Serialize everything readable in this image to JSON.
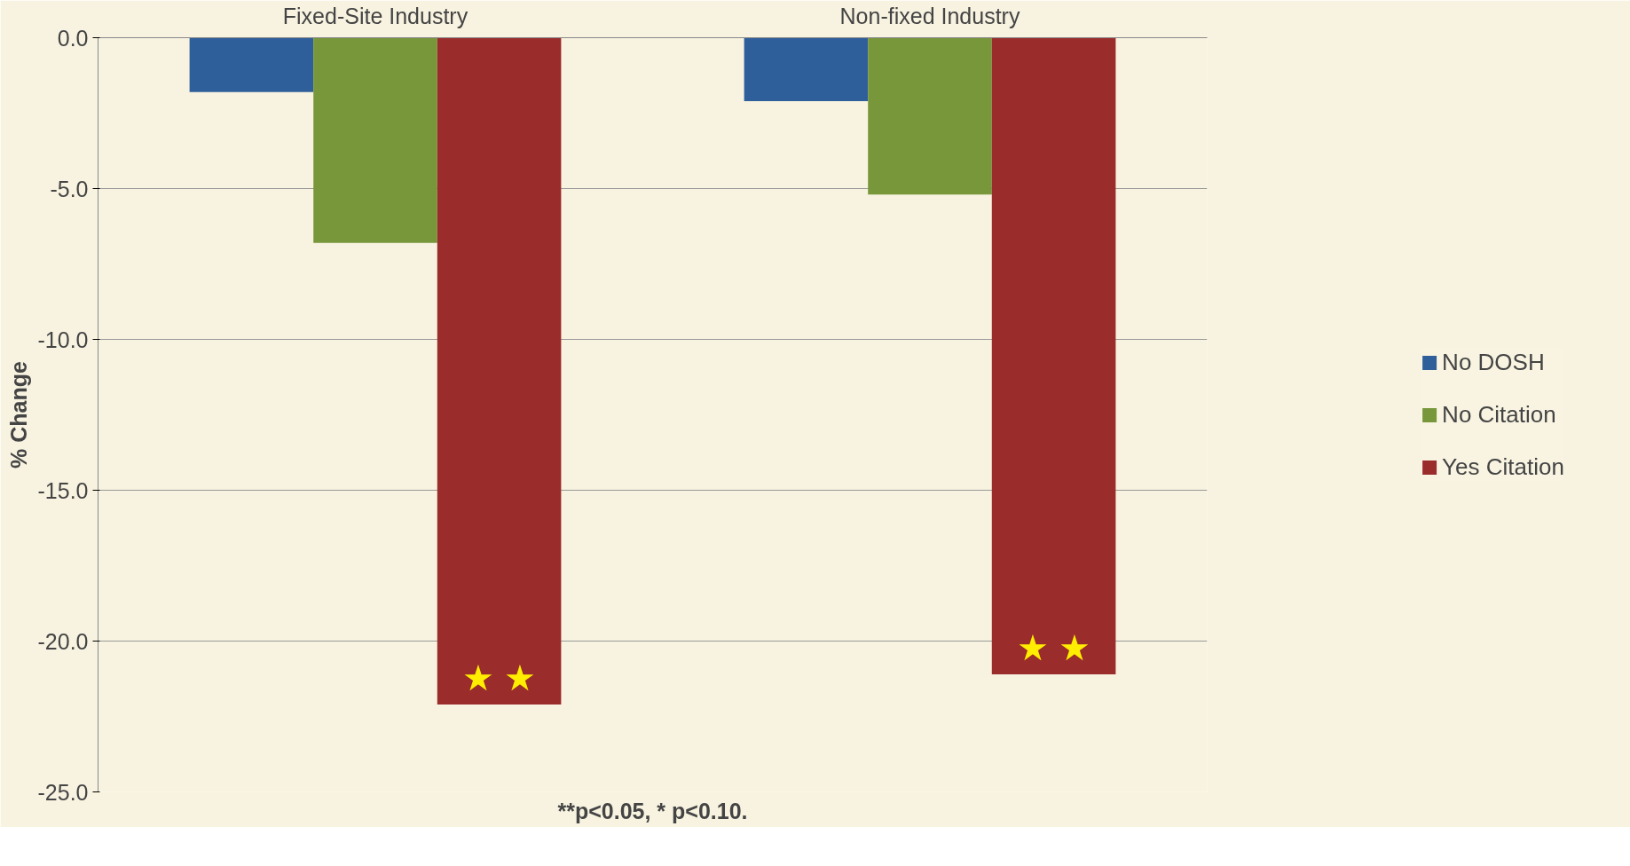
{
  "chart_data": {
    "type": "bar",
    "ylabel": "% Change",
    "categories": [
      "Fixed-Site Industry",
      "Non-fixed Industry"
    ],
    "series": [
      {
        "name": "No DOSH",
        "color": "#2e5f9a",
        "values": [
          -1.8,
          -2.1
        ]
      },
      {
        "name": "No Citation",
        "color": "#77973a",
        "values": [
          -6.8,
          -5.2
        ]
      },
      {
        "name": "Yes Citation",
        "color": "#9b2c2c",
        "values": [
          -22.1,
          -21.1
        ]
      }
    ],
    "ylim": [
      -25,
      0
    ],
    "yticks": [
      {
        "value": -25,
        "label": "-25.0"
      },
      {
        "value": -20,
        "label": "-20.0"
      },
      {
        "value": -15,
        "label": "-15.0"
      },
      {
        "value": -10,
        "label": "-10.0"
      },
      {
        "value": -5,
        "label": "-5.0"
      },
      {
        "value": 0,
        "label": "0.0"
      }
    ],
    "grid": "y",
    "legend": "right",
    "annotations": [
      "★ ★",
      "★ ★",
      "**p<0.05, * p<0.10."
    ]
  }
}
